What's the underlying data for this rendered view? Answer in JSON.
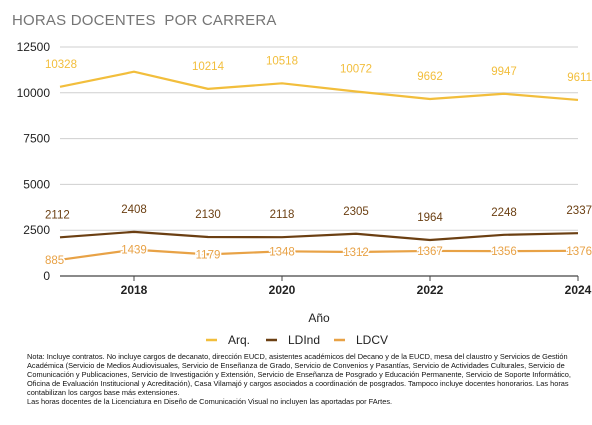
{
  "chart_data": {
    "type": "line",
    "title": "HORAS DOCENTES  POR CARRERA",
    "xlabel": "Año",
    "ylabel": "",
    "x": [
      2017,
      2018,
      2019,
      2020,
      2021,
      2022,
      2023,
      2024
    ],
    "x_ticks": [
      2018,
      2020,
      2022,
      2024
    ],
    "xlim": [
      2017,
      2024
    ],
    "ylim": [
      0,
      12500
    ],
    "y_ticks": [
      0,
      2500,
      5000,
      7500,
      10000,
      12500
    ],
    "y_tick_labels": [
      "0",
      "2500",
      "5000",
      "7500",
      "10000",
      "12500"
    ],
    "grid": "horizontal",
    "legend_position": "bottom",
    "series": [
      {
        "name": "Arq.",
        "color": "#F2BE3C",
        "values": [
          10328,
          11150,
          10214,
          10518,
          10072,
          9662,
          9947,
          9611
        ],
        "labels": [
          "10328",
          "",
          "10214",
          "10518",
          "10072",
          "9662",
          "9947",
          "9611"
        ]
      },
      {
        "name": "LDInd",
        "color": "#6B3F12",
        "values": [
          2112,
          2408,
          2130,
          2118,
          2305,
          1964,
          2248,
          2337
        ],
        "labels": [
          "2112",
          "2408",
          "2130",
          "2118",
          "2305",
          "1964",
          "2248",
          "2337"
        ]
      },
      {
        "name": "LDCV",
        "color": "#E8A246",
        "values": [
          885,
          1439,
          1179,
          1348,
          1312,
          1367,
          1356,
          1376
        ],
        "labels": [
          "885",
          "1439",
          "1179",
          "1348",
          "1312",
          "1367",
          "1356",
          "1376"
        ]
      }
    ]
  },
  "note_lines": [
    "Nota: Incluye contratos. No incluye cargos de decanato, dirección EUCD, asistentes académicos del Decano y de la EUCD, mesa del claustro y Servicios de Gestión Académica (Servicio de Medios Audiovisuales, Servicio de Enseñanza de Grado, Servicio de Convenios y Pasantías, Servicio de Actividades Culturales, Servicio de Comunicación y Publicaciones, Servicio de Investigación y Extensión, Servicio de Enseñanza de Posgrado y Educación Permanente, Servicio de Soporte Informático, Oficina de Evaluación Institucional y Acreditación), Casa Vilamajó y cargos asociados a coordinación de posgrados. Tampoco incluye docentes honorarios. Las horas contabilizan los cargos base más extensiones.",
    "Las horas docentes de la Licenciatura en Diseño de Comunicación Visual no incluyen las aportadas por FArtes."
  ]
}
